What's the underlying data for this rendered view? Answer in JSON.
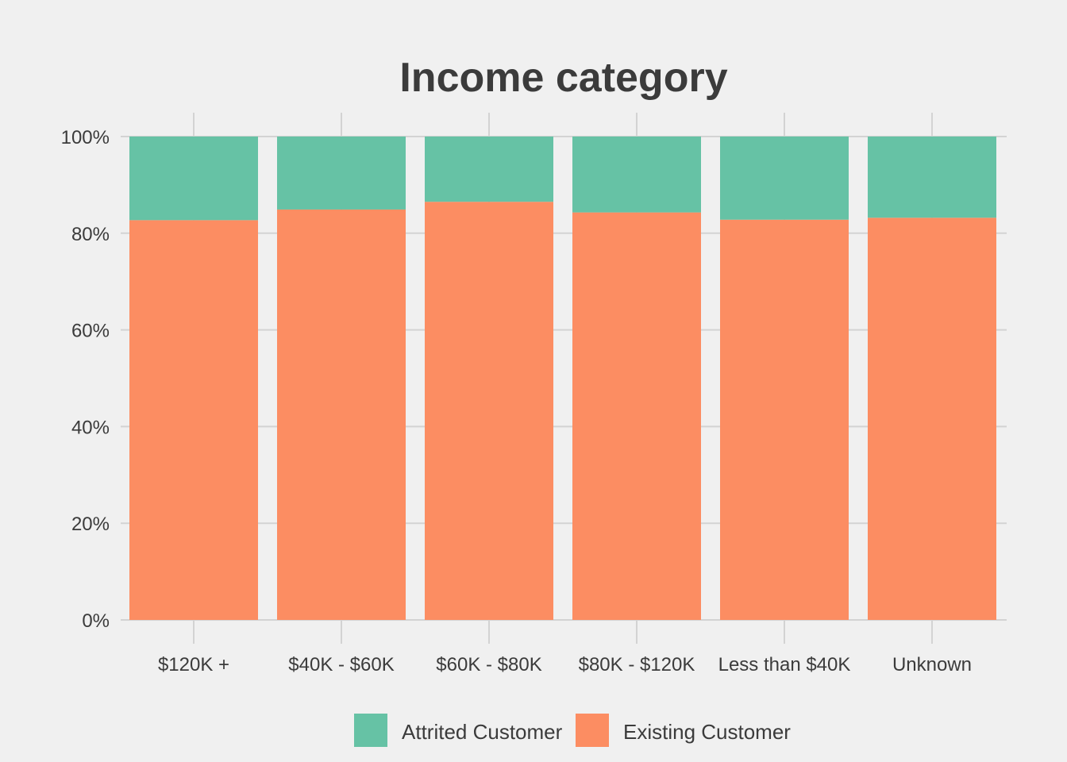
{
  "chart_data": {
    "type": "bar",
    "stacked": true,
    "title": "Income category",
    "xlabel": "",
    "ylabel": "",
    "ylim": [
      0,
      1
    ],
    "y_tick_values": [
      0,
      0.2,
      0.4,
      0.6,
      0.8,
      1.0
    ],
    "y_tick_labels": [
      "0%",
      "20%",
      "40%",
      "60%",
      "80%",
      "100%"
    ],
    "categories": [
      "$120K +",
      "$40K - $60K",
      "$60K - $80K",
      "$80K - $120K",
      "Less than $40K",
      "Unknown"
    ],
    "series": [
      {
        "name": "Existing Customer",
        "color": "#fc8d62",
        "values": [
          0.827,
          0.849,
          0.865,
          0.843,
          0.828,
          0.832
        ]
      },
      {
        "name": "Attrited Customer",
        "color": "#66c2a5",
        "values": [
          0.173,
          0.151,
          0.135,
          0.157,
          0.172,
          0.168
        ]
      }
    ],
    "legend": {
      "position": "bottom",
      "entries": [
        "Attrited Customer",
        "Existing Customer"
      ]
    },
    "grid": true,
    "grid_color": "#d3d3d3",
    "background": "#f0f0f0"
  }
}
